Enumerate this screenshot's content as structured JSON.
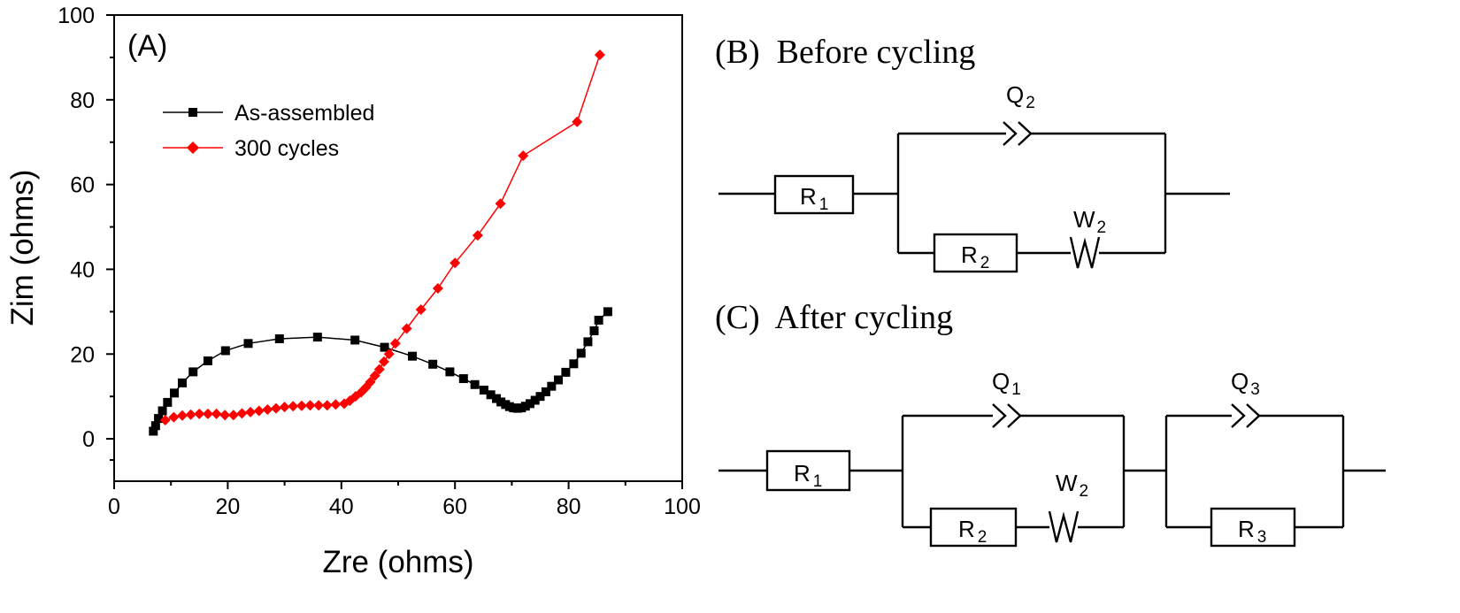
{
  "chart_data": {
    "type": "scatter",
    "panel_label": "(A)",
    "xlabel": "Zre (ohms)",
    "ylabel": "Zim (ohms)",
    "xlim": [
      0,
      100
    ],
    "ylim": [
      -10,
      100
    ],
    "xticks": [
      0,
      20,
      40,
      60,
      80,
      100
    ],
    "yticks": [
      0,
      20,
      40,
      60,
      80,
      100
    ],
    "legend_position": "top-left",
    "series": [
      {
        "name": "As-assembled",
        "color": "#000000",
        "marker": "square",
        "x": [
          6.9,
          7.3,
          7.8,
          8.5,
          9.4,
          10.6,
          12.0,
          13.9,
          16.5,
          19.6,
          23.6,
          29.1,
          35.8,
          42.4,
          47.6,
          52.5,
          56.1,
          59.1,
          61.5,
          63.5,
          65.1,
          66.3,
          67.3,
          68.1,
          68.9,
          69.6,
          70.3,
          71.0,
          71.7,
          72.4,
          73.2,
          74.1,
          75.0,
          76.0,
          77.0,
          78.2,
          79.5,
          80.9,
          82.2,
          83.4,
          84.5,
          85.3,
          86.9
        ],
        "y": [
          1.8,
          3.1,
          4.8,
          6.6,
          8.6,
          10.8,
          13.2,
          15.8,
          18.4,
          20.8,
          22.5,
          23.6,
          24.0,
          23.3,
          21.6,
          19.5,
          17.6,
          15.8,
          14.2,
          12.8,
          11.5,
          10.4,
          9.5,
          8.7,
          8.1,
          7.6,
          7.3,
          7.2,
          7.3,
          7.7,
          8.3,
          9.1,
          10.0,
          11.1,
          12.4,
          13.9,
          15.7,
          17.7,
          20.2,
          22.9,
          25.5,
          28.0,
          30.0
        ]
      },
      {
        "name": "300 cycles",
        "color": "#ff0000",
        "marker": "diamond",
        "x": [
          9.0,
          10.5,
          12.0,
          13.5,
          15.0,
          16.5,
          18.0,
          19.5,
          21.0,
          22.5,
          24.0,
          25.5,
          27.0,
          28.5,
          30.0,
          31.5,
          33.0,
          34.5,
          36.0,
          37.5,
          39.0,
          40.5,
          41.5,
          42.5,
          43.5,
          44.3,
          45.1,
          45.9,
          46.7,
          47.5,
          48.4,
          49.5,
          51.5,
          54.0,
          57.0,
          60.0,
          64.0,
          68.0,
          72.0,
          81.5,
          85.5
        ],
        "y": [
          4.4,
          5.1,
          5.5,
          5.7,
          5.9,
          5.9,
          5.9,
          5.6,
          5.6,
          6.0,
          6.3,
          6.6,
          6.9,
          7.2,
          7.5,
          7.7,
          7.8,
          7.9,
          7.9,
          7.9,
          8.1,
          8.3,
          9.0,
          10.0,
          11.0,
          12.1,
          13.4,
          14.9,
          16.4,
          18.2,
          20.0,
          22.5,
          26.0,
          30.5,
          35.5,
          41.5,
          48.0,
          55.5,
          66.8,
          74.8,
          90.6
        ]
      }
    ]
  },
  "circuits": [
    {
      "heading": "(B)  Before cycling",
      "elements": {
        "r1": {
          "main": "R",
          "sub": "1"
        },
        "q": {
          "main": "Q",
          "sub": "2"
        },
        "w": {
          "main": "W",
          "sub": "2"
        },
        "r2": {
          "main": "R",
          "sub": "2"
        }
      }
    },
    {
      "heading": "(C)  After cycling",
      "elements": {
        "r1": {
          "main": "R",
          "sub": "1"
        },
        "q1": {
          "main": "Q",
          "sub": "1"
        },
        "w": {
          "main": "W",
          "sub": "2"
        },
        "r2": {
          "main": "R",
          "sub": "2"
        },
        "q3": {
          "main": "Q",
          "sub": "3"
        },
        "r3": {
          "main": "R",
          "sub": "3"
        }
      }
    }
  ]
}
